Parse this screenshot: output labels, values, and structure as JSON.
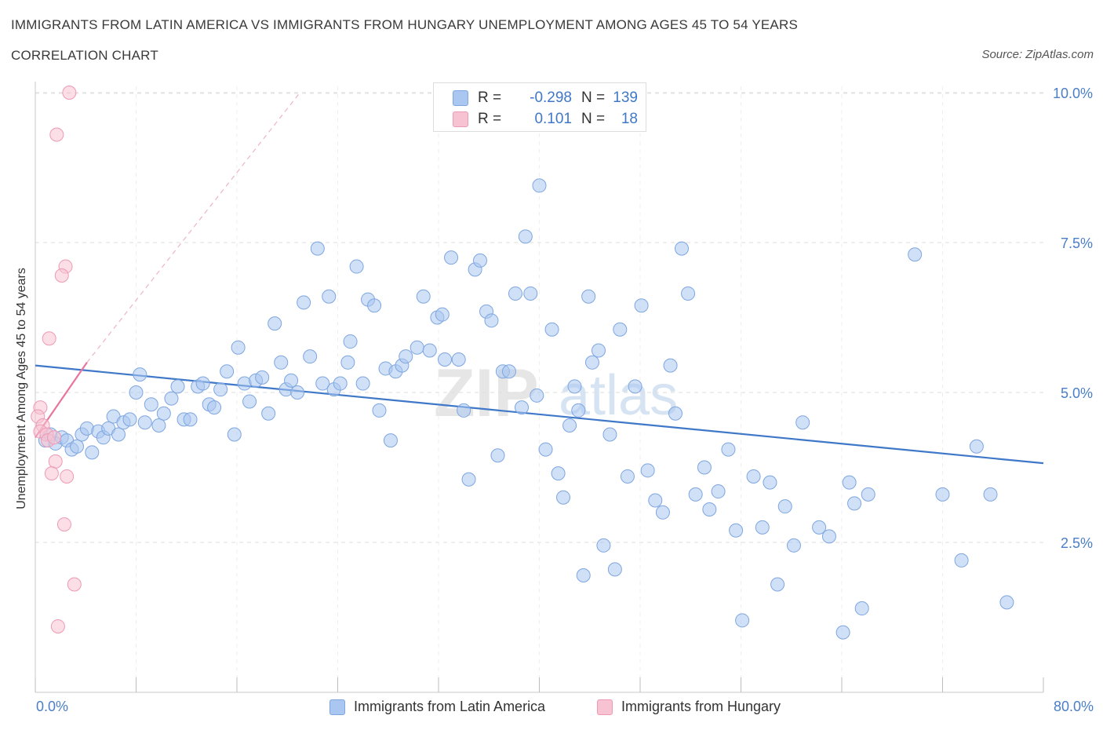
{
  "header": {
    "title": "IMMIGRANTS FROM LATIN AMERICA VS IMMIGRANTS FROM HUNGARY UNEMPLOYMENT AMONG AGES 45 TO 54 YEARS",
    "subtitle": "CORRELATION CHART",
    "source": "Source: ZipAtlas.com"
  },
  "watermark": {
    "zip": "ZIP",
    "atlas": "atlas"
  },
  "stats": {
    "r_label": "R =",
    "n_label": "N =",
    "rows": [
      {
        "r": "-0.298",
        "n": "139",
        "color": "#a9c7f0",
        "border": "#7ea6e0"
      },
      {
        "r": "0.101",
        "n": "18",
        "color": "#f7c3d2",
        "border": "#ee9ab4"
      }
    ]
  },
  "chart_data": {
    "type": "scatter",
    "title": "IMMIGRANTS FROM LATIN AMERICA VS IMMIGRANTS FROM HUNGARY UNEMPLOYMENT AMONG AGES 45 TO 54 YEARS",
    "subtitle": "CORRELATION CHART",
    "xlabel": "",
    "ylabel": "Unemployment Among Ages 45 to 54 years",
    "xlim": [
      0,
      80
    ],
    "ylim": [
      0,
      10.5
    ],
    "x_tick_labels": [
      "0.0%",
      "80.0%"
    ],
    "y_ticks": [
      {
        "value": 2.5,
        "label": "2.5%"
      },
      {
        "value": 5.0,
        "label": "5.0%"
      },
      {
        "value": 7.5,
        "label": "7.5%"
      },
      {
        "value": 10.0,
        "label": "10.0%"
      }
    ],
    "grid": true,
    "legend_position": "bottom-center",
    "series": [
      {
        "name": "Immigrants from Latin America",
        "color": "#a9c7f0",
        "stroke": "#7ea6e0",
        "trend": {
          "x0": 0,
          "y0": 5.45,
          "x1": 80,
          "y1": 3.82,
          "color": "#3f78c8"
        },
        "points": [
          [
            0.8,
            4.2
          ],
          [
            1.2,
            4.3
          ],
          [
            1.6,
            4.15
          ],
          [
            2.1,
            4.25
          ],
          [
            2.5,
            4.2
          ],
          [
            2.9,
            4.05
          ],
          [
            3.3,
            4.1
          ],
          [
            3.7,
            4.3
          ],
          [
            4.1,
            4.4
          ],
          [
            4.5,
            4.0
          ],
          [
            5.0,
            4.35
          ],
          [
            5.4,
            4.25
          ],
          [
            5.8,
            4.4
          ],
          [
            6.2,
            4.6
          ],
          [
            6.6,
            4.3
          ],
          [
            7.0,
            4.5
          ],
          [
            7.5,
            4.55
          ],
          [
            8.0,
            5.0
          ],
          [
            8.3,
            5.3
          ],
          [
            8.7,
            4.5
          ],
          [
            9.2,
            4.8
          ],
          [
            9.8,
            4.45
          ],
          [
            10.2,
            4.65
          ],
          [
            10.8,
            4.9
          ],
          [
            11.3,
            5.1
          ],
          [
            11.8,
            4.55
          ],
          [
            12.3,
            4.55
          ],
          [
            12.9,
            5.1
          ],
          [
            13.3,
            5.15
          ],
          [
            13.8,
            4.8
          ],
          [
            14.2,
            4.75
          ],
          [
            14.7,
            5.05
          ],
          [
            15.2,
            5.35
          ],
          [
            15.8,
            4.3
          ],
          [
            16.1,
            5.75
          ],
          [
            16.6,
            5.15
          ],
          [
            17.0,
            4.85
          ],
          [
            17.5,
            5.2
          ],
          [
            18.0,
            5.25
          ],
          [
            18.5,
            4.65
          ],
          [
            19.0,
            6.15
          ],
          [
            19.5,
            5.5
          ],
          [
            19.9,
            5.05
          ],
          [
            20.3,
            5.2
          ],
          [
            20.8,
            5.0
          ],
          [
            21.3,
            6.5
          ],
          [
            21.8,
            5.6
          ],
          [
            22.4,
            7.4
          ],
          [
            22.8,
            5.15
          ],
          [
            23.3,
            6.6
          ],
          [
            23.7,
            5.05
          ],
          [
            24.2,
            5.15
          ],
          [
            24.8,
            5.5
          ],
          [
            25.0,
            5.85
          ],
          [
            25.5,
            7.1
          ],
          [
            26.0,
            5.15
          ],
          [
            26.4,
            6.55
          ],
          [
            26.9,
            6.45
          ],
          [
            27.3,
            4.7
          ],
          [
            27.8,
            5.4
          ],
          [
            28.2,
            4.2
          ],
          [
            28.6,
            5.35
          ],
          [
            29.1,
            5.45
          ],
          [
            29.4,
            5.6
          ],
          [
            30.3,
            5.75
          ],
          [
            30.8,
            6.6
          ],
          [
            31.3,
            5.7
          ],
          [
            31.9,
            6.25
          ],
          [
            32.3,
            6.3
          ],
          [
            32.5,
            5.55
          ],
          [
            33.0,
            7.25
          ],
          [
            33.6,
            5.55
          ],
          [
            34.0,
            4.7
          ],
          [
            34.4,
            3.55
          ],
          [
            34.9,
            7.05
          ],
          [
            35.3,
            7.2
          ],
          [
            35.8,
            6.35
          ],
          [
            36.2,
            6.2
          ],
          [
            36.7,
            3.95
          ],
          [
            37.1,
            5.35
          ],
          [
            37.6,
            5.35
          ],
          [
            38.1,
            6.65
          ],
          [
            38.6,
            4.75
          ],
          [
            38.9,
            7.6
          ],
          [
            39.3,
            6.65
          ],
          [
            39.8,
            4.95
          ],
          [
            40.0,
            8.45
          ],
          [
            40.5,
            4.05
          ],
          [
            41.0,
            6.05
          ],
          [
            41.5,
            3.65
          ],
          [
            41.9,
            3.25
          ],
          [
            42.4,
            4.45
          ],
          [
            42.8,
            5.1
          ],
          [
            43.1,
            4.7
          ],
          [
            43.5,
            1.95
          ],
          [
            43.9,
            6.6
          ],
          [
            44.2,
            5.5
          ],
          [
            44.7,
            5.7
          ],
          [
            45.1,
            2.45
          ],
          [
            45.6,
            4.3
          ],
          [
            46.0,
            2.05
          ],
          [
            46.4,
            6.05
          ],
          [
            47.0,
            3.6
          ],
          [
            47.6,
            5.1
          ],
          [
            48.1,
            6.45
          ],
          [
            48.6,
            3.7
          ],
          [
            49.2,
            3.2
          ],
          [
            49.8,
            3.0
          ],
          [
            50.4,
            5.45
          ],
          [
            50.8,
            4.65
          ],
          [
            51.3,
            7.4
          ],
          [
            51.8,
            6.65
          ],
          [
            52.4,
            3.3
          ],
          [
            53.1,
            3.75
          ],
          [
            53.5,
            3.05
          ],
          [
            54.2,
            3.35
          ],
          [
            55.0,
            4.05
          ],
          [
            55.6,
            2.7
          ],
          [
            56.1,
            1.2
          ],
          [
            57.0,
            3.6
          ],
          [
            57.7,
            2.75
          ],
          [
            58.3,
            3.5
          ],
          [
            58.9,
            1.8
          ],
          [
            59.5,
            3.1
          ],
          [
            60.2,
            2.45
          ],
          [
            60.9,
            4.5
          ],
          [
            62.2,
            2.75
          ],
          [
            63.0,
            2.6
          ],
          [
            64.1,
            1.0
          ],
          [
            64.6,
            3.5
          ],
          [
            65.0,
            3.15
          ],
          [
            65.6,
            1.4
          ],
          [
            66.1,
            3.3
          ],
          [
            69.8,
            7.3
          ],
          [
            72.0,
            3.3
          ],
          [
            77.1,
            1.5
          ],
          [
            73.5,
            2.2
          ],
          [
            74.7,
            4.1
          ],
          [
            75.8,
            3.3
          ]
        ]
      },
      {
        "name": "Immigrants from Hungary",
        "color": "#f7c3d2",
        "stroke": "#ee9ab4",
        "trend": {
          "x0": 0,
          "y0": 4.25,
          "x1": 4.1,
          "y1": 5.5,
          "color": "#e8759f"
        },
        "trend_extension": {
          "x0": 4.1,
          "y0": 5.5,
          "x1": 21,
          "y1": 10.0
        },
        "points": [
          [
            2.7,
            10.0
          ],
          [
            1.7,
            9.3
          ],
          [
            2.4,
            7.1
          ],
          [
            2.1,
            6.95
          ],
          [
            1.1,
            5.9
          ],
          [
            0.4,
            4.75
          ],
          [
            0.2,
            4.6
          ],
          [
            0.6,
            4.45
          ],
          [
            0.4,
            4.35
          ],
          [
            0.9,
            4.3
          ],
          [
            1.0,
            4.2
          ],
          [
            1.5,
            4.25
          ],
          [
            1.6,
            3.85
          ],
          [
            1.3,
            3.65
          ],
          [
            2.5,
            3.6
          ],
          [
            2.3,
            2.8
          ],
          [
            3.1,
            1.8
          ],
          [
            1.8,
            1.1
          ]
        ]
      }
    ]
  }
}
